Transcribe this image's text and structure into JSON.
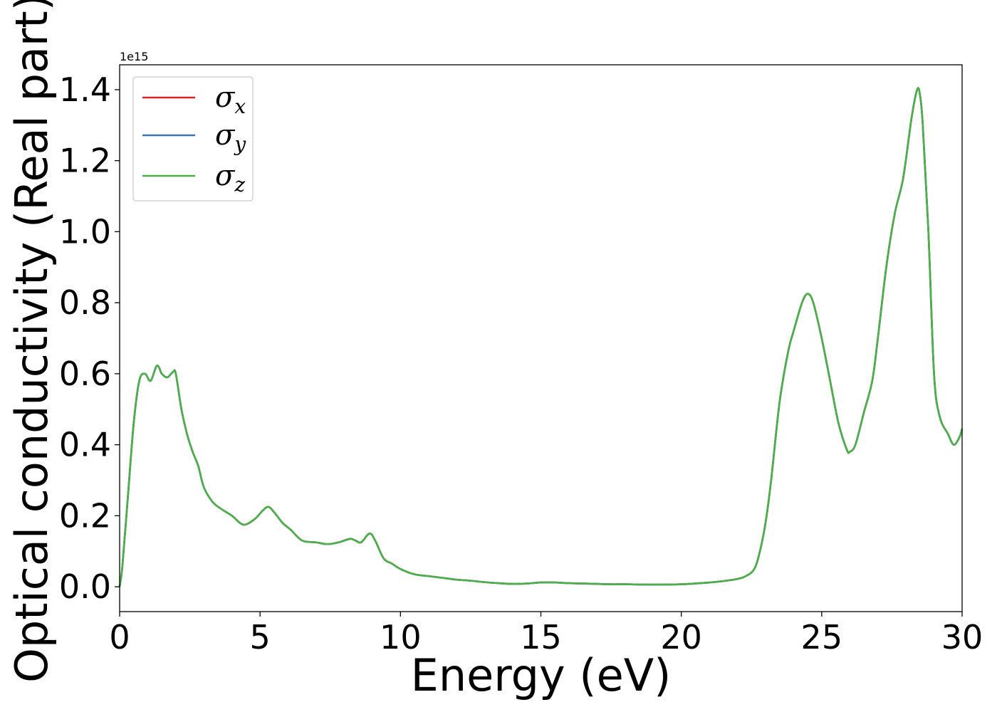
{
  "chart_data": {
    "type": "line",
    "title": "",
    "xlabel": "Energy (eV)",
    "ylabel": "Optical conductivity (Real part)",
    "y_offset_label": "1e15",
    "y_scale_factor": 1000000000000000.0,
    "xlim": [
      0,
      30
    ],
    "ylim": [
      -0.07,
      1.47
    ],
    "x_ticks": [
      0,
      5,
      10,
      15,
      20,
      25,
      30
    ],
    "x_tick_labels": [
      "0",
      "5",
      "10",
      "15",
      "20",
      "25",
      "30"
    ],
    "y_ticks": [
      0.0,
      0.2,
      0.4,
      0.6,
      0.8,
      1.0,
      1.2,
      1.4
    ],
    "y_tick_labels": [
      "0.0",
      "0.2",
      "0.4",
      "0.6",
      "0.8",
      "1.0",
      "1.2",
      "1.4"
    ],
    "grid": false,
    "legend_position": "top-left",
    "x": [
      0,
      0.1,
      0.3,
      0.5,
      0.7,
      0.9,
      1.1,
      1.3,
      1.4,
      1.5,
      1.7,
      1.9,
      2.0,
      2.2,
      2.4,
      2.6,
      2.8,
      3.0,
      3.3,
      3.6,
      4.0,
      4.4,
      4.8,
      5.1,
      5.3,
      5.5,
      5.8,
      6.1,
      6.5,
      7.0,
      7.4,
      7.8,
      8.2,
      8.4,
      8.6,
      8.9,
      9.1,
      9.4,
      9.7,
      10.0,
      10.5,
      11.0,
      11.5,
      12.0,
      12.5,
      13.0,
      13.5,
      14.0,
      14.5,
      15.0,
      15.5,
      16.0,
      16.5,
      17.0,
      17.5,
      18.0,
      19.0,
      20.0,
      21.0,
      21.5,
      22.0,
      22.3,
      22.6,
      22.8,
      23.0,
      23.2,
      23.5,
      23.8,
      24.0,
      24.3,
      24.5,
      24.7,
      25.0,
      25.3,
      25.6,
      25.9,
      26.0,
      26.2,
      26.5,
      26.8,
      27.0,
      27.3,
      27.6,
      27.9,
      28.2,
      28.4,
      28.5,
      28.6,
      28.8,
      29.0,
      29.2,
      29.5,
      29.7,
      29.9,
      30.0
    ],
    "series": [
      {
        "name": "σx",
        "color": "#d62728",
        "values": [
          0.0,
          0.06,
          0.26,
          0.46,
          0.58,
          0.6,
          0.58,
          0.62,
          0.618,
          0.6,
          0.59,
          0.605,
          0.6,
          0.5,
          0.43,
          0.38,
          0.34,
          0.28,
          0.24,
          0.22,
          0.2,
          0.175,
          0.19,
          0.215,
          0.225,
          0.21,
          0.18,
          0.16,
          0.13,
          0.125,
          0.12,
          0.125,
          0.135,
          0.13,
          0.125,
          0.15,
          0.13,
          0.08,
          0.065,
          0.05,
          0.035,
          0.03,
          0.025,
          0.02,
          0.017,
          0.013,
          0.01,
          0.008,
          0.009,
          0.012,
          0.012,
          0.01,
          0.009,
          0.008,
          0.007,
          0.007,
          0.006,
          0.007,
          0.012,
          0.016,
          0.022,
          0.03,
          0.05,
          0.1,
          0.18,
          0.3,
          0.52,
          0.66,
          0.72,
          0.8,
          0.825,
          0.8,
          0.7,
          0.58,
          0.46,
          0.385,
          0.38,
          0.4,
          0.49,
          0.58,
          0.7,
          0.9,
          1.05,
          1.15,
          1.32,
          1.4,
          1.385,
          1.3,
          1.0,
          0.6,
          0.48,
          0.43,
          0.4,
          0.42,
          0.445
        ]
      },
      {
        "name": "σy",
        "color": "#3a78b5",
        "values": [
          0.0,
          0.06,
          0.26,
          0.46,
          0.58,
          0.6,
          0.58,
          0.62,
          0.618,
          0.6,
          0.59,
          0.605,
          0.6,
          0.5,
          0.43,
          0.38,
          0.34,
          0.28,
          0.24,
          0.22,
          0.2,
          0.175,
          0.19,
          0.215,
          0.225,
          0.21,
          0.18,
          0.16,
          0.13,
          0.125,
          0.12,
          0.125,
          0.135,
          0.13,
          0.125,
          0.15,
          0.13,
          0.08,
          0.065,
          0.05,
          0.035,
          0.03,
          0.025,
          0.02,
          0.017,
          0.013,
          0.01,
          0.008,
          0.009,
          0.012,
          0.012,
          0.01,
          0.009,
          0.008,
          0.007,
          0.007,
          0.006,
          0.007,
          0.012,
          0.016,
          0.022,
          0.03,
          0.05,
          0.1,
          0.18,
          0.3,
          0.52,
          0.66,
          0.72,
          0.8,
          0.825,
          0.8,
          0.7,
          0.58,
          0.46,
          0.385,
          0.38,
          0.4,
          0.49,
          0.58,
          0.7,
          0.9,
          1.05,
          1.15,
          1.32,
          1.4,
          1.385,
          1.3,
          1.0,
          0.6,
          0.48,
          0.43,
          0.4,
          0.42,
          0.445
        ]
      },
      {
        "name": "σz",
        "color": "#4daf4a",
        "values": [
          0.0,
          0.06,
          0.26,
          0.46,
          0.58,
          0.6,
          0.58,
          0.62,
          0.618,
          0.6,
          0.59,
          0.605,
          0.6,
          0.5,
          0.43,
          0.38,
          0.34,
          0.28,
          0.24,
          0.22,
          0.2,
          0.175,
          0.19,
          0.215,
          0.225,
          0.21,
          0.18,
          0.16,
          0.13,
          0.125,
          0.12,
          0.125,
          0.135,
          0.13,
          0.125,
          0.15,
          0.13,
          0.08,
          0.065,
          0.05,
          0.035,
          0.03,
          0.025,
          0.02,
          0.017,
          0.013,
          0.01,
          0.008,
          0.009,
          0.012,
          0.012,
          0.01,
          0.009,
          0.008,
          0.007,
          0.007,
          0.006,
          0.007,
          0.012,
          0.016,
          0.022,
          0.03,
          0.05,
          0.1,
          0.18,
          0.3,
          0.52,
          0.66,
          0.72,
          0.8,
          0.825,
          0.8,
          0.7,
          0.58,
          0.46,
          0.385,
          0.38,
          0.4,
          0.49,
          0.58,
          0.7,
          0.9,
          1.05,
          1.15,
          1.32,
          1.4,
          1.385,
          1.3,
          1.0,
          0.6,
          0.48,
          0.43,
          0.4,
          0.42,
          0.445
        ]
      }
    ],
    "legend": [
      {
        "symbol": "σ",
        "subscript": "x",
        "color": "#d62728"
      },
      {
        "symbol": "σ",
        "subscript": "y",
        "color": "#3a78b5"
      },
      {
        "symbol": "σ",
        "subscript": "z",
        "color": "#4daf4a"
      }
    ]
  }
}
